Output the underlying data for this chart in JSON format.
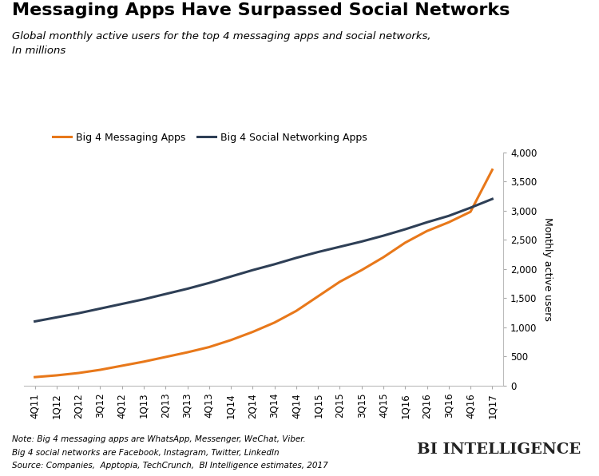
{
  "title": "Messaging Apps Have Surpassed Social Networks",
  "subtitle": "Global monthly active users for the top 4 messaging apps and social networks,\nIn millions",
  "ylabel": "Monthly active users",
  "note_line1": "Note: Big 4 messaging apps are WhatsApp, Messenger, WeChat, Viber.",
  "note_line2": "Big 4 social networks are Facebook, Instagram, Twitter, LinkedIn",
  "note_line3": "Source: Companies,  Apptopia, TechCrunch,  BI Intelligence estimates, 2017",
  "branding": "BI INTELLIGENCE",
  "x_labels": [
    "4Q11",
    "1Q12",
    "2Q12",
    "3Q12",
    "4Q12",
    "1Q13",
    "2Q13",
    "3Q13",
    "4Q13",
    "1Q14",
    "2Q14",
    "3Q14",
    "4Q14",
    "1Q15",
    "2Q15",
    "3Q15",
    "4Q15",
    "1Q16",
    "2Q16",
    "3Q16",
    "4Q16",
    "1Q17"
  ],
  "messaging_values": [
    145,
    175,
    215,
    270,
    340,
    410,
    490,
    570,
    660,
    780,
    920,
    1080,
    1280,
    1530,
    1780,
    1980,
    2200,
    2450,
    2650,
    2800,
    2980,
    3700
  ],
  "social_values": [
    1100,
    1170,
    1240,
    1320,
    1400,
    1480,
    1570,
    1660,
    1760,
    1870,
    1980,
    2080,
    2190,
    2290,
    2380,
    2470,
    2570,
    2680,
    2800,
    2910,
    3050,
    3200
  ],
  "messaging_color": "#E8781A",
  "social_color": "#2E3F56",
  "ylim": [
    0,
    4000
  ],
  "yticks": [
    0,
    500,
    1000,
    1500,
    2000,
    2500,
    3000,
    3500,
    4000
  ],
  "bg_color": "#FFFFFF",
  "legend_messaging": "Big 4 Messaging Apps",
  "legend_social": "Big 4 Social Networking Apps",
  "title_fontsize": 16,
  "subtitle_fontsize": 9.5,
  "axis_label_fontsize": 9,
  "tick_fontsize": 8.5,
  "note_fontsize": 7.5
}
